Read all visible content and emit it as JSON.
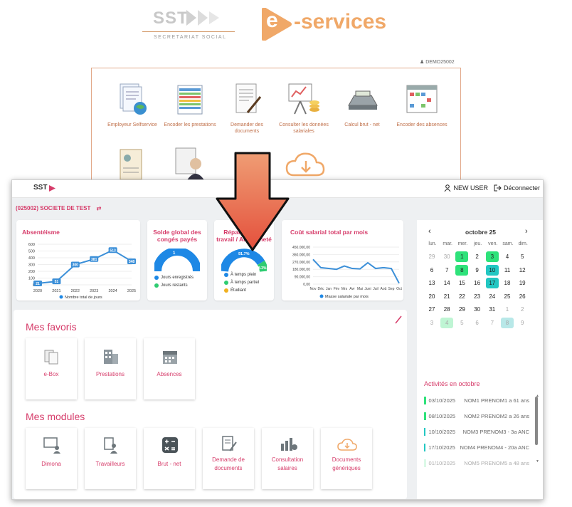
{
  "header": {
    "sst_word": "SST",
    "sst_subtitle": "SECRETARIAT SOCIAL",
    "eservices_letter": "e",
    "eservices_text": "-services",
    "demo_user": "DEMO25002",
    "colors": {
      "orange": "#f0a868",
      "pink": "#d63c6a"
    }
  },
  "old_menu": {
    "items": [
      {
        "label": "Employeur Selfservice",
        "icon": "documents-globe-icon"
      },
      {
        "label": "Encoder les prestations",
        "icon": "spreadsheet-icon"
      },
      {
        "label": "Demander des documents",
        "icon": "document-pen-icon"
      },
      {
        "label": "Consulter les données salariales",
        "icon": "presentation-board-icon"
      },
      {
        "label": "Calcul brut - net",
        "icon": "calculator-icon"
      },
      {
        "label": "Encoder des absences",
        "icon": "calendar-grid-icon"
      }
    ],
    "row2_icons": [
      "profile-card-icon",
      "person-document-icon",
      "cloud-download-icon"
    ]
  },
  "app": {
    "logo": "SST",
    "user": "NEW USER",
    "logout": "Déconnecter",
    "company": "(025002) SOCIETE DE TEST"
  },
  "widgets": {
    "absenteisme": {
      "title": "Absentéisme",
      "legend": "Nombre total de jours",
      "years": [
        "2020",
        "2021",
        "2022",
        "2023",
        "2024",
        "2025"
      ],
      "yticks": [
        "600",
        "500",
        "400",
        "300",
        "200",
        "100",
        "0"
      ],
      "values": [
        21,
        51,
        300,
        381,
        513,
        348
      ],
      "value_labels": [
        "21",
        "51",
        "300",
        "381",
        "513",
        "348"
      ]
    },
    "conges": {
      "title": "Solde global des congés payés",
      "center_label": "1",
      "legend": [
        "Jours enregistrés",
        "Jours restants"
      ]
    },
    "repartition": {
      "title": "Répartition du travail / Ancienneté",
      "label_big": "91.7%",
      "label_small": "8.3%",
      "legend": [
        "À temps plein",
        "À temps partiel",
        "Étudiant"
      ]
    },
    "cout": {
      "title": "Coût salarial total par mois",
      "yticks": [
        "450.000,00",
        "360.000,00",
        "270.000,00",
        "180.000,00",
        "90.000,00",
        "0,00"
      ],
      "months": [
        "Nov",
        "Déc",
        "Jan",
        "Fév",
        "Mrs",
        "Avr",
        "Mai",
        "Juni",
        "Juil",
        "Aoû",
        "Sep",
        "Oct"
      ],
      "legend": "Masse salariale par mois"
    }
  },
  "chart_data": [
    {
      "type": "line",
      "title": "Absentéisme",
      "x": [
        "2020",
        "2021",
        "2022",
        "2023",
        "2024",
        "2025"
      ],
      "series": [
        {
          "name": "Nombre total de jours",
          "values": [
            21,
            51,
            300,
            381,
            513,
            348
          ]
        }
      ],
      "ylim": [
        0,
        600
      ]
    },
    {
      "type": "line",
      "title": "Coût salarial total par mois",
      "x": [
        "Nov",
        "Déc",
        "Jan",
        "Fév",
        "Mrs",
        "Avr",
        "Mai",
        "Juni",
        "Juil",
        "Aoû",
        "Sep",
        "Oct"
      ],
      "series": [
        {
          "name": "Masse salariale par mois",
          "values": [
            300000,
            200000,
            190000,
            180000,
            220000,
            190000,
            185000,
            260000,
            190000,
            200000,
            190000,
            10000
          ]
        }
      ],
      "ylim": [
        0,
        450000
      ]
    }
  ],
  "favoris": {
    "title": "Mes favoris",
    "items": [
      {
        "label": "e-Box",
        "icon": "ebox-icon"
      },
      {
        "label": "Prestations",
        "icon": "building-icon"
      },
      {
        "label": "Absences",
        "icon": "calendar-icon"
      }
    ]
  },
  "modules": {
    "title": "Mes modules",
    "items": [
      {
        "label": "Dimona",
        "icon": "presenter-icon"
      },
      {
        "label": "Travailleurs",
        "icon": "worker-icon"
      },
      {
        "label": "Brut - net",
        "icon": "calculator-icon"
      },
      {
        "label": "Demande de documents",
        "icon": "document-pen-icon"
      },
      {
        "label": "Consultation salaires",
        "icon": "salary-chart-icon"
      },
      {
        "label": "Documents génériques",
        "icon": "cloud-download-icon"
      }
    ]
  },
  "calendar": {
    "month": "octobre 25",
    "weekdays": [
      "lun.",
      "mar.",
      "mer.",
      "jeu.",
      "ven.",
      "sam.",
      "dim."
    ],
    "rows": [
      [
        "29",
        "30",
        "1",
        "2",
        "3",
        "4",
        "5"
      ],
      [
        "6",
        "7",
        "8",
        "9",
        "10",
        "11",
        "12"
      ],
      [
        "13",
        "14",
        "15",
        "16",
        "17",
        "18",
        "19"
      ],
      [
        "20",
        "21",
        "22",
        "23",
        "24",
        "25",
        "26"
      ],
      [
        "27",
        "28",
        "29",
        "30",
        "31",
        "1",
        "2"
      ],
      [
        "3",
        "4",
        "5",
        "6",
        "7",
        "8",
        "9"
      ]
    ]
  },
  "activities": {
    "title": "Activités en octobre",
    "items": [
      {
        "date": "03/10/2025",
        "text": "NOM1 PRENOM1 a 61 ans"
      },
      {
        "date": "08/10/2025",
        "text": "NOM2 PRENOM2 a 26 ans"
      },
      {
        "date": "10/10/2025",
        "text": "NOM3 PRENOM3 - 3a ANC"
      },
      {
        "date": "17/10/2025",
        "text": "NOM4 PRENOM4 - 20a ANC"
      },
      {
        "date": "01/10/2025",
        "text": "NOM5 PRENOM5 a 48 ans"
      }
    ]
  }
}
